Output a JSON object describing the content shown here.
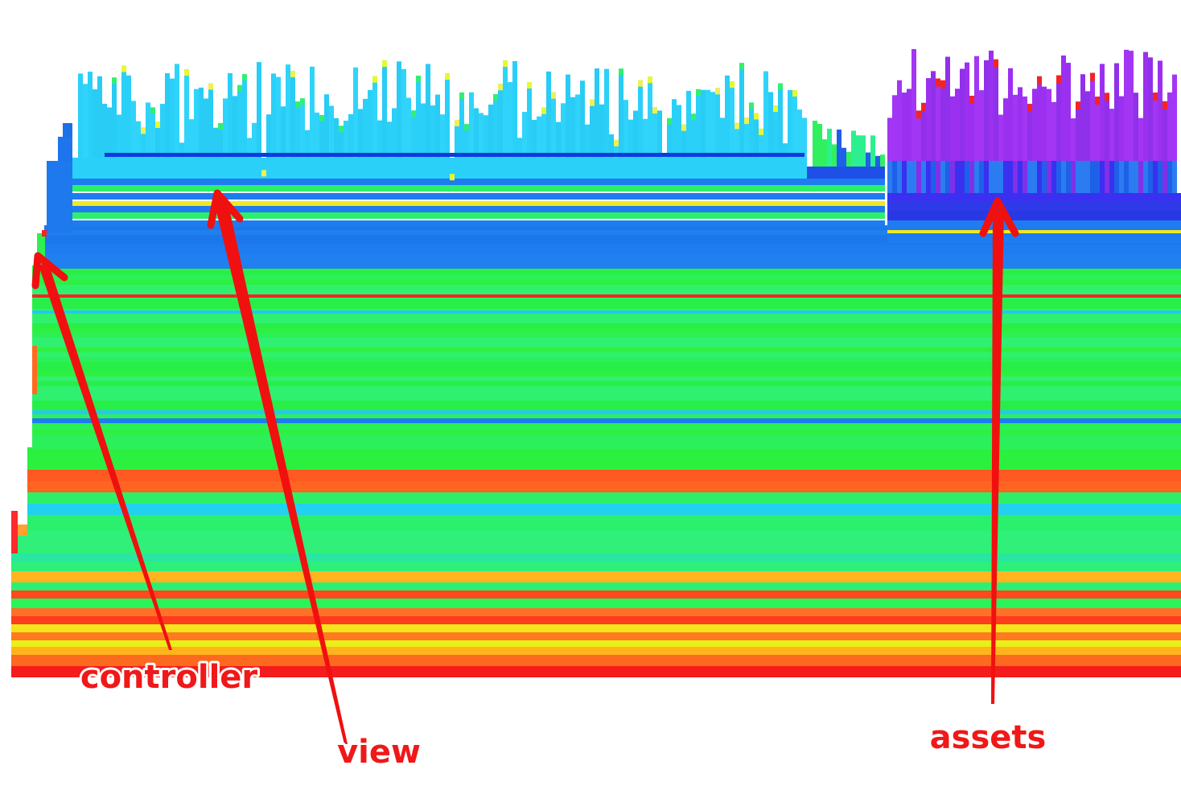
{
  "annotations": [
    {
      "label": "controller"
    },
    {
      "label": "view"
    },
    {
      "label": "assets"
    }
  ]
}
